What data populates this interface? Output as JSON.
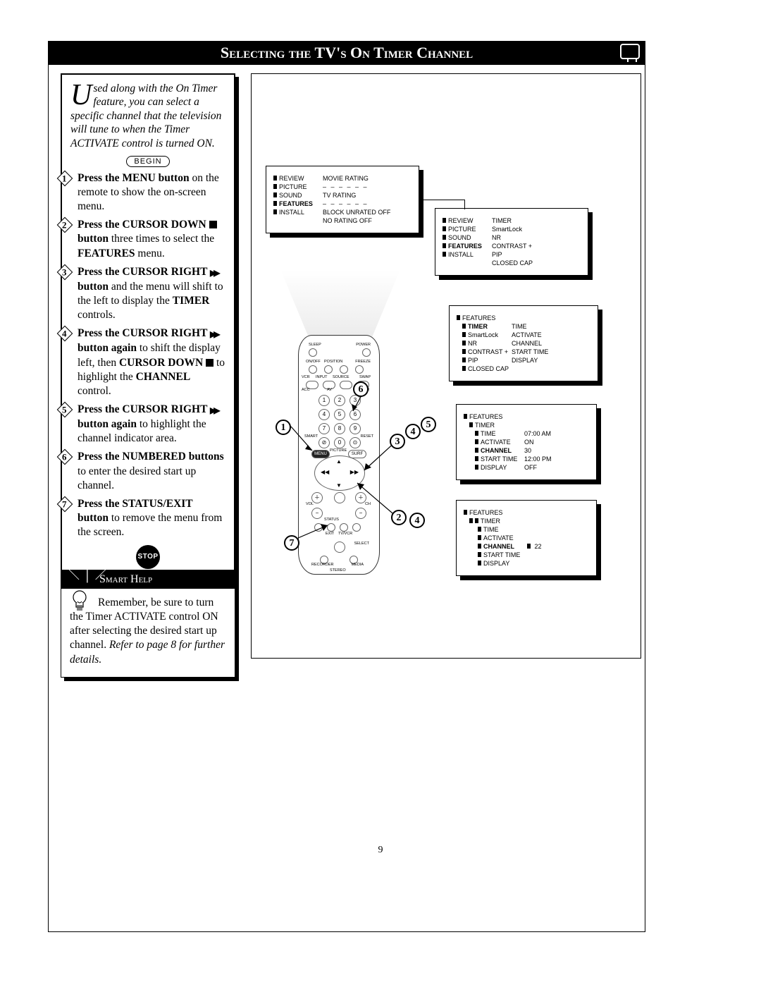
{
  "title": "Selecting the TV's On Timer Channel",
  "intro": {
    "dropcap": "U",
    "text": "sed along with the On Timer feature, you can select a specific channel that the television will tune to when the Timer ACTIVATE control is turned ON."
  },
  "begin_label": "BEGIN",
  "stop_label": "STOP",
  "steps": [
    {
      "n": "1",
      "html": "<b>Press the MENU button</b> on the remote to show the on-screen menu."
    },
    {
      "n": "2",
      "html": "<b>Press the CURSOR DOWN <span class='sq'></span> button</b> three times to select the <b>FEATURES</b> menu."
    },
    {
      "n": "3",
      "html": "<b>Press the CURSOR RIGHT <span class='rr'></span> button</b> and the menu will shift to the left to display the <b>TIMER</b> controls."
    },
    {
      "n": "4",
      "html": "<b>Press the CURSOR RIGHT <span class='rr'></span> button again</b> to shift the display left, then <b>CURSOR DOWN <span class='sq'></span></b> to highlight the <b>CHANNEL</b> control."
    },
    {
      "n": "5",
      "html": "<b>Press the CURSOR RIGHT <span class='rr'></span> button again</b> to highlight the channel indicator area."
    },
    {
      "n": "6",
      "html": "<b>Press the NUMBERED buttons</b> to enter the desired start up channel."
    },
    {
      "n": "7",
      "html": "<b>Press the STATUS/EXIT button</b> to remove the menu from the screen."
    }
  ],
  "smart_help": {
    "header": "Smart Help",
    "body": "Remember, be sure to turn the Timer ACTIVATE control ON after selecting the desired start up channel. ",
    "ref": "Refer to page 8 for further details."
  },
  "menu1": {
    "left": [
      "REVIEW",
      "PICTURE",
      "SOUND",
      "FEATURES",
      "INSTALL"
    ],
    "right": [
      "MOVIE RATING",
      "– – – – – –",
      "TV RATING",
      "– – – – – –",
      "BLOCK UNRATED  OFF",
      "NO RATING            OFF"
    ]
  },
  "menu2": {
    "left": [
      "REVIEW",
      "PICTURE",
      "SOUND",
      "FEATURES",
      "INSTALL",
      ""
    ],
    "right": [
      "TIMER",
      "SmartLock",
      "NR",
      "CONTRAST +",
      "PIP",
      "CLOSED CAP"
    ]
  },
  "menu3": {
    "title": "FEATURES",
    "left": [
      "TIMER",
      "SmartLock",
      "NR",
      "CONTRAST +",
      "PIP",
      "CLOSED CAP"
    ],
    "right": [
      "TIME",
      "ACTIVATE",
      "CHANNEL",
      "START TIME",
      "DISPLAY",
      ""
    ]
  },
  "menu4": {
    "title": "FEATURES",
    "sub": "TIMER",
    "rows": [
      [
        "TIME",
        "07:00 AM"
      ],
      [
        "ACTIVATE",
        "ON"
      ],
      [
        "CHANNEL",
        "30"
      ],
      [
        "START TIME",
        "12:00 PM"
      ],
      [
        "DISPLAY",
        "OFF"
      ]
    ]
  },
  "menu5": {
    "title": "FEATURES",
    "sub": "TIMER",
    "rows": [
      [
        "TIME",
        ""
      ],
      [
        "ACTIVATE",
        ""
      ],
      [
        "CHANNEL",
        "22"
      ],
      [
        "START TIME",
        ""
      ],
      [
        "DISPLAY",
        ""
      ]
    ]
  },
  "remote_labels": {
    "sleep": "SLEEP",
    "power": "POWER",
    "onoff": "ON/OFF",
    "position": "POSITION",
    "freeze": "FREEZE",
    "vcr": "VCR",
    "input": "INPUT",
    "source": "SOURCE",
    "swap": "SWAP",
    "acc": "ACC",
    "av": "AV",
    "ch": "CH",
    "smart": "SMART",
    "reset": "RESET",
    "menu": "MENU",
    "surf": "SURF",
    "picture": "PICTURE",
    "status": "STATUS",
    "exit": "EXIT",
    "tvvcr": "TV/VCR",
    "select": "SELECT",
    "recorder": "RECORDER",
    "media": "MEDIA",
    "stereo": "STEREO",
    "vol": "VOL"
  },
  "callouts": [
    "1",
    "2",
    "3",
    "4",
    "5",
    "6",
    "7"
  ],
  "page_number": "9",
  "colors": {
    "black": "#000000",
    "white": "#ffffff",
    "grey": "#d0d0d0"
  }
}
